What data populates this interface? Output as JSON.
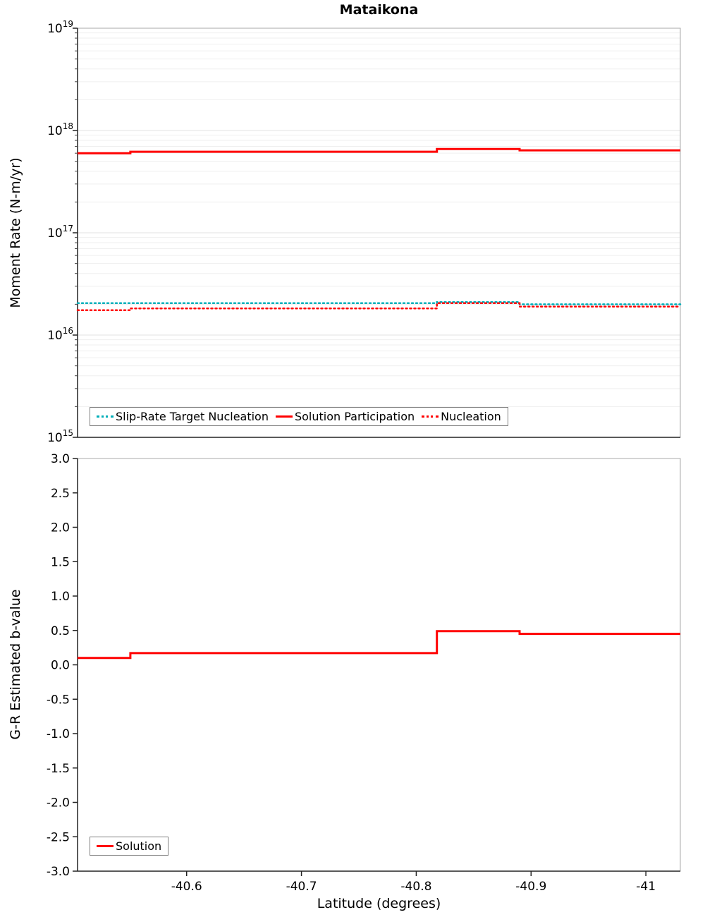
{
  "chart_data": [
    {
      "type": "line",
      "title": "Mataikona",
      "ylabel": "Moment Rate (N-m/yr)",
      "yscale": "log",
      "ylim_exponents": [
        15,
        19
      ],
      "y_tick_exponents": [
        15,
        16,
        17,
        18,
        19
      ],
      "x_range": [
        -40.505,
        -41.03
      ],
      "x_edges": [
        -40.505,
        -40.551,
        -40.818,
        -40.89,
        -41.03
      ],
      "series": [
        {
          "name": "Slip-Rate Target Nucleation",
          "color": "#00AEB9",
          "style": "dotted",
          "values": [
            2.05e+16,
            2.05e+16,
            2.1e+16,
            2e+16
          ]
        },
        {
          "name": "Nucleation",
          "color": "#FF0000",
          "style": "dotted",
          "values": [
            1.75e+16,
            1.82e+16,
            2.05e+16,
            1.9e+16
          ]
        },
        {
          "name": "Solution Participation",
          "color": "#FF0000",
          "style": "solid",
          "values": [
            6e+17,
            6.2e+17,
            6.6e+17,
            6.4e+17
          ]
        }
      ],
      "legend": [
        {
          "label": "Slip-Rate Target Nucleation",
          "color": "#00AEB9",
          "style": "dotted"
        },
        {
          "label": "Solution Participation",
          "color": "#FF0000",
          "style": "solid"
        },
        {
          "label": "Nucleation",
          "color": "#FF0000",
          "style": "dotted"
        }
      ]
    },
    {
      "type": "line",
      "ylabel": "G-R Estimated b-value",
      "xlabel": "Latitude (degrees)",
      "yscale": "linear",
      "ylim": [
        -3.0,
        3.0
      ],
      "y_ticks": [
        -3.0,
        -2.5,
        -2.0,
        -1.5,
        -1.0,
        -0.5,
        0.0,
        0.5,
        1.0,
        1.5,
        2.0,
        2.5,
        3.0
      ],
      "y_tick_labels": [
        "-3.0",
        "-2.5",
        "-2.0",
        "-1.5",
        "-1.0",
        "-0.5",
        "0.0",
        "0.5",
        "1.0",
        "1.5",
        "2.0",
        "2.5",
        "3.0"
      ],
      "x_range": [
        -40.505,
        -41.03
      ],
      "x_ticks": [
        -40.6,
        -40.7,
        -40.8,
        -40.9,
        -41.0
      ],
      "x_tick_labels": [
        "-40.6",
        "-40.7",
        "-40.8",
        "-40.9",
        "-41"
      ],
      "x_edges": [
        -40.505,
        -40.551,
        -40.818,
        -40.89,
        -41.03
      ],
      "series": [
        {
          "name": "Solution",
          "color": "#FF0000",
          "style": "solid",
          "values": [
            0.1,
            0.17,
            0.49,
            0.45
          ]
        }
      ],
      "legend": [
        {
          "label": "Solution",
          "color": "#FF0000",
          "style": "solid"
        }
      ]
    }
  ]
}
